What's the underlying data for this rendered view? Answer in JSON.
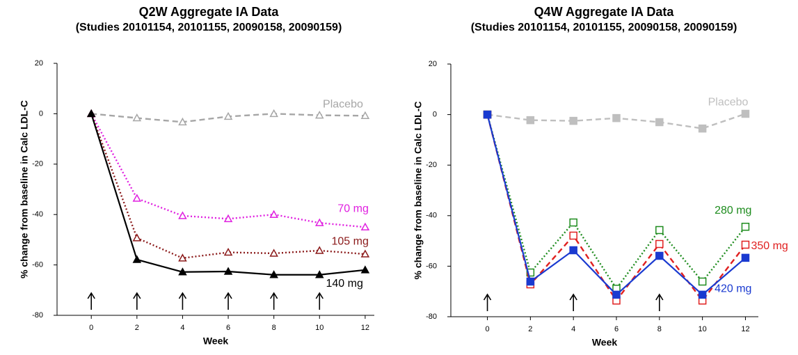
{
  "chart_data": [
    {
      "type": "line",
      "title": "Q2W Aggregate IA Data",
      "subtitle": "(Studies 20101154, 20101155, 20090158, 20090159)",
      "xlabel": "Week",
      "ylabel": "% change from baseline in Calc LDL-C",
      "x": [
        0,
        2,
        4,
        6,
        8,
        10,
        12
      ],
      "xlim": [
        -1.5,
        12.4
      ],
      "xticks": [
        0,
        2,
        4,
        6,
        8,
        10,
        12
      ],
      "ylim": [
        -80,
        20
      ],
      "yticks": [
        -80,
        -60,
        -40,
        -20,
        0,
        20
      ],
      "grid": false,
      "dose_arrows": [
        0,
        2,
        4,
        6,
        8,
        10
      ],
      "series": [
        {
          "name": "Placebo",
          "color": "#a6a6a6",
          "dash": "dashed",
          "marker": "triangle",
          "marker_fill": "open",
          "values": [
            0,
            -1.7,
            -3.3,
            -1.1,
            0,
            -0.6,
            -0.8
          ]
        },
        {
          "name": "70 mg",
          "color": "#e020e0",
          "dash": "dotted",
          "marker": "triangle",
          "marker_fill": "open",
          "values": [
            0,
            -33.6,
            -40.5,
            -41.7,
            -40,
            -43.3,
            -45
          ]
        },
        {
          "name": "105 mg",
          "color": "#8b1a1a",
          "dash": "dotted",
          "marker": "triangle",
          "marker_fill": "open",
          "values": [
            0,
            -49.3,
            -57.3,
            -55,
            -55.4,
            -54.3,
            -55.7
          ]
        },
        {
          "name": "140 mg",
          "color": "#000000",
          "dash": "solid",
          "marker": "triangle",
          "marker_fill": "filled",
          "values": [
            0,
            -57.9,
            -62.8,
            -62.6,
            -63.9,
            -63.9,
            -62
          ]
        }
      ]
    },
    {
      "type": "line",
      "title": "Q4W Aggregate IA Data",
      "subtitle": "(Studies 20101154, 20101155, 20090158, 20090159)",
      "xlabel": "Week",
      "ylabel": "% change from baseline in Calc LDL-C",
      "x": [
        0,
        2,
        4,
        6,
        8,
        10,
        12
      ],
      "xlim": [
        -1.7,
        12.6
      ],
      "xticks": [
        0,
        2,
        4,
        6,
        8,
        10,
        12
      ],
      "ylim": [
        -80,
        20
      ],
      "yticks": [
        -80,
        -60,
        -40,
        -20,
        0,
        20
      ],
      "grid": false,
      "dose_arrows": [
        0,
        4,
        8
      ],
      "series": [
        {
          "name": "Placebo",
          "color": "#bfbfbf",
          "dash": "dashed",
          "marker": "square",
          "marker_fill": "filled",
          "values": [
            0,
            -2.2,
            -2.5,
            -1.4,
            -3,
            -5.5,
            0.3
          ]
        },
        {
          "name": "280 mg",
          "color": "#1e8c1e",
          "dash": "dotted",
          "marker": "square",
          "marker_fill": "open",
          "values": [
            0,
            -62.5,
            -42.7,
            -68.9,
            -45.7,
            -66.1,
            -44.4
          ]
        },
        {
          "name": "350 mg",
          "color": "#e02020",
          "dash": "dashed",
          "marker": "square",
          "marker_fill": "open",
          "values": [
            0,
            -67.2,
            -47.9,
            -73.6,
            -51.2,
            -73.6,
            -51.5
          ]
        },
        {
          "name": "420 mg",
          "color": "#1a3ad0",
          "dash": "solid",
          "marker": "square",
          "marker_fill": "filled",
          "values": [
            0,
            -66.1,
            -53.7,
            -71.3,
            -55.9,
            -71.3,
            -56.7
          ]
        }
      ]
    }
  ]
}
